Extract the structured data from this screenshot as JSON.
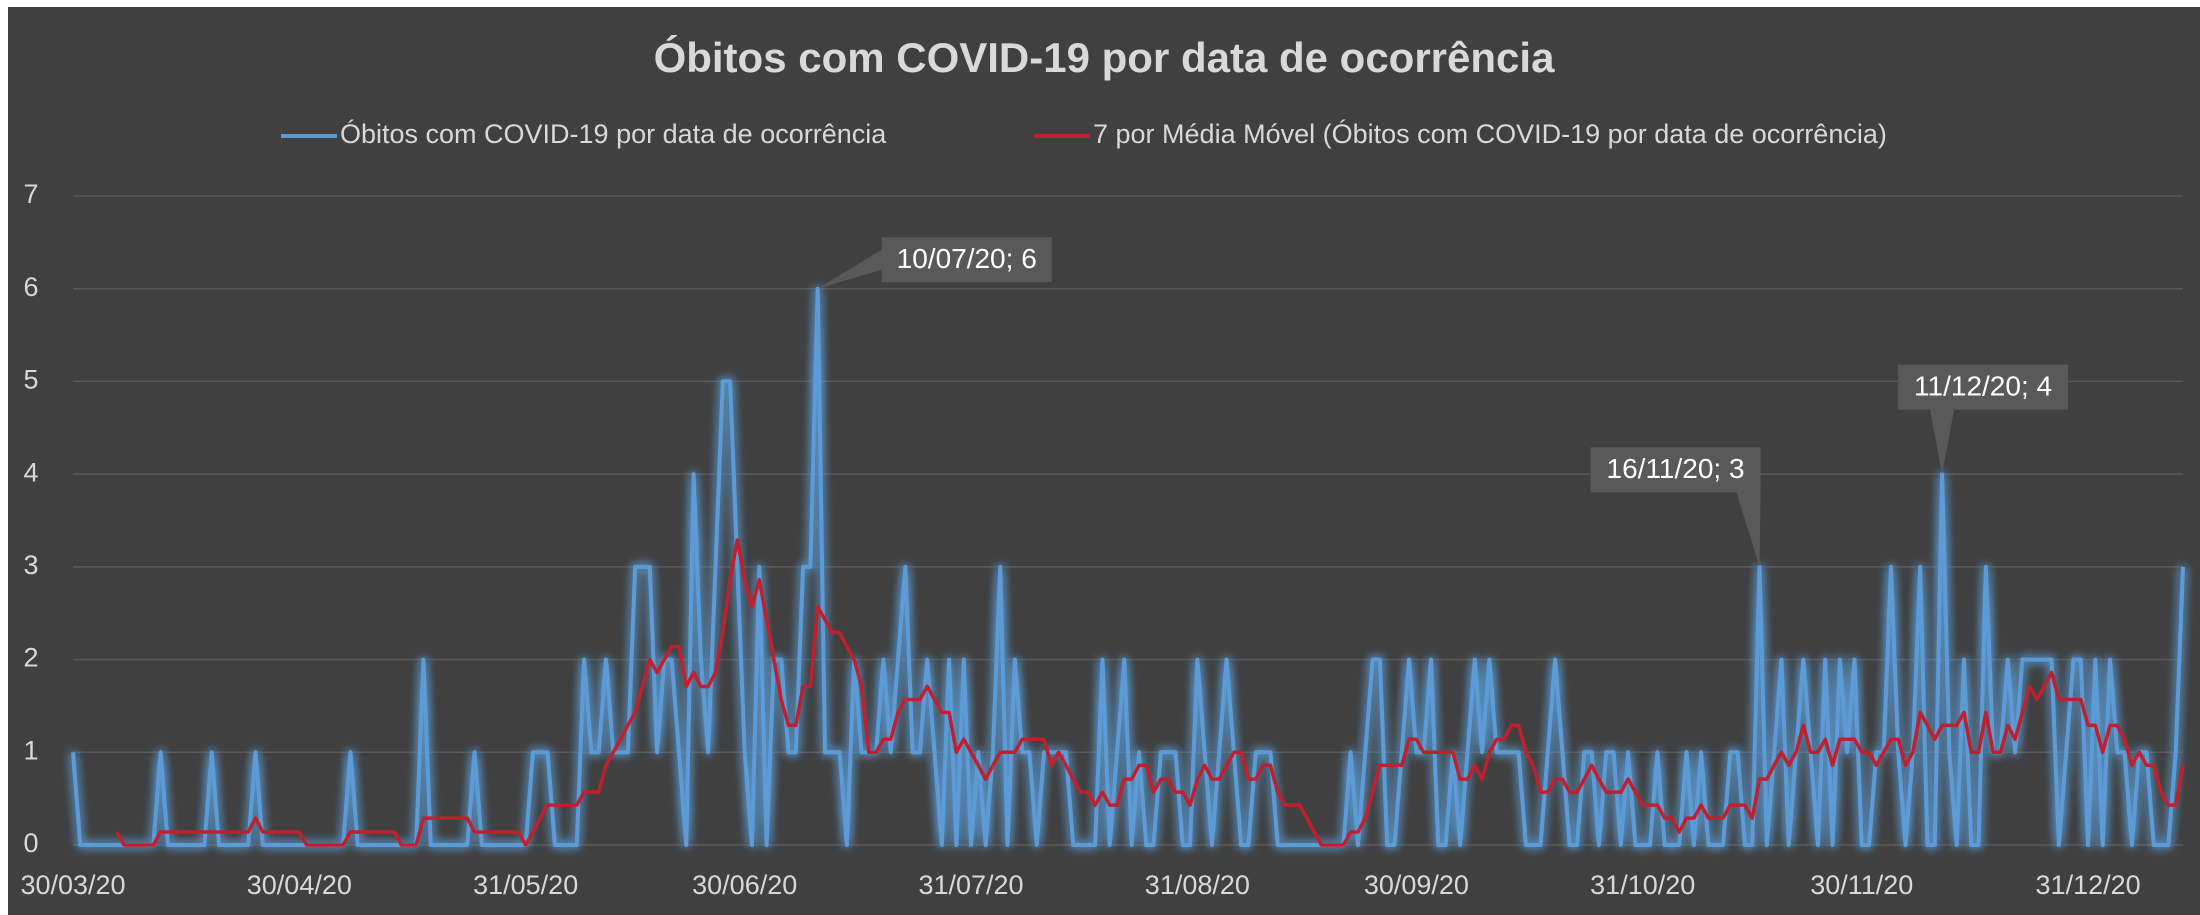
{
  "chart_data": {
    "type": "line",
    "title": "Óbitos com COVID-19 por data de ocorrência",
    "x": [
      "30/03/20",
      "31/03/20",
      "01/04/20",
      "02/04/20",
      "03/04/20",
      "04/04/20",
      "05/04/20",
      "06/04/20",
      "07/04/20",
      "08/04/20",
      "09/04/20",
      "10/04/20",
      "11/04/20",
      "12/04/20",
      "13/04/20",
      "14/04/20",
      "15/04/20",
      "16/04/20",
      "17/04/20",
      "18/04/20",
      "19/04/20",
      "20/04/20",
      "21/04/20",
      "22/04/20",
      "23/04/20",
      "24/04/20",
      "25/04/20",
      "26/04/20",
      "27/04/20",
      "28/04/20",
      "29/04/20",
      "30/04/20",
      "01/05/20",
      "02/05/20",
      "03/05/20",
      "04/05/20",
      "05/05/20",
      "06/05/20",
      "07/05/20",
      "08/05/20",
      "09/05/20",
      "10/05/20",
      "11/05/20",
      "12/05/20",
      "13/05/20",
      "14/05/20",
      "15/05/20",
      "16/05/20",
      "17/05/20",
      "18/05/20",
      "19/05/20",
      "20/05/20",
      "21/05/20",
      "22/05/20",
      "23/05/20",
      "24/05/20",
      "25/05/20",
      "26/05/20",
      "27/05/20",
      "28/05/20",
      "29/05/20",
      "30/05/20",
      "31/05/20",
      "01/06/20",
      "02/06/20",
      "03/06/20",
      "04/06/20",
      "05/06/20",
      "06/06/20",
      "07/06/20",
      "08/06/20",
      "09/06/20",
      "10/06/20",
      "11/06/20",
      "12/06/20",
      "13/06/20",
      "14/06/20",
      "15/06/20",
      "16/06/20",
      "17/06/20",
      "18/06/20",
      "19/06/20",
      "20/06/20",
      "21/06/20",
      "22/06/20",
      "23/06/20",
      "24/06/20",
      "25/06/20",
      "26/06/20",
      "27/06/20",
      "28/06/20",
      "29/06/20",
      "30/06/20",
      "01/07/20",
      "02/07/20",
      "03/07/20",
      "04/07/20",
      "05/07/20",
      "06/07/20",
      "07/07/20",
      "08/07/20",
      "09/07/20",
      "10/07/20",
      "11/07/20",
      "12/07/20",
      "13/07/20",
      "14/07/20",
      "15/07/20",
      "16/07/20",
      "17/07/20",
      "18/07/20",
      "19/07/20",
      "20/07/20",
      "21/07/20",
      "22/07/20",
      "23/07/20",
      "24/07/20",
      "25/07/20",
      "26/07/20",
      "27/07/20",
      "28/07/20",
      "29/07/20",
      "30/07/20",
      "31/07/20",
      "01/08/20",
      "02/08/20",
      "03/08/20",
      "04/08/20",
      "05/08/20",
      "06/08/20",
      "07/08/20",
      "08/08/20",
      "09/08/20",
      "10/08/20",
      "11/08/20",
      "12/08/20",
      "13/08/20",
      "14/08/20",
      "15/08/20",
      "16/08/20",
      "17/08/20",
      "18/08/20",
      "19/08/20",
      "20/08/20",
      "21/08/20",
      "22/08/20",
      "23/08/20",
      "24/08/20",
      "25/08/20",
      "26/08/20",
      "27/08/20",
      "28/08/20",
      "29/08/20",
      "30/08/20",
      "31/08/20",
      "01/09/20",
      "02/09/20",
      "03/09/20",
      "04/09/20",
      "05/09/20",
      "06/09/20",
      "07/09/20",
      "08/09/20",
      "09/09/20",
      "10/09/20",
      "11/09/20",
      "12/09/20",
      "13/09/20",
      "14/09/20",
      "15/09/20",
      "16/09/20",
      "17/09/20",
      "18/09/20",
      "19/09/20",
      "20/09/20",
      "21/09/20",
      "22/09/20",
      "23/09/20",
      "24/09/20",
      "25/09/20",
      "26/09/20",
      "27/09/20",
      "28/09/20",
      "29/09/20",
      "30/09/20",
      "01/10/20",
      "02/10/20",
      "03/10/20",
      "04/10/20",
      "05/10/20",
      "06/10/20",
      "07/10/20",
      "08/10/20",
      "09/10/20",
      "10/10/20",
      "11/10/20",
      "12/10/20",
      "13/10/20",
      "14/10/20",
      "15/10/20",
      "16/10/20",
      "17/10/20",
      "18/10/20",
      "19/10/20",
      "20/10/20",
      "21/10/20",
      "22/10/20",
      "23/10/20",
      "24/10/20",
      "25/10/20",
      "26/10/20",
      "27/10/20",
      "28/10/20",
      "29/10/20",
      "30/10/20",
      "31/10/20",
      "01/11/20",
      "02/11/20",
      "03/11/20",
      "04/11/20",
      "05/11/20",
      "06/11/20",
      "07/11/20",
      "08/11/20",
      "09/11/20",
      "10/11/20",
      "11/11/20",
      "12/11/20",
      "13/11/20",
      "14/11/20",
      "15/11/20",
      "16/11/20",
      "17/11/20",
      "18/11/20",
      "19/11/20",
      "20/11/20",
      "21/11/20",
      "22/11/20",
      "23/11/20",
      "24/11/20",
      "25/11/20",
      "26/11/20",
      "27/11/20",
      "28/11/20",
      "29/11/20",
      "30/11/20",
      "01/12/20",
      "02/12/20",
      "03/12/20",
      "04/12/20",
      "05/12/20",
      "06/12/20",
      "07/12/20",
      "08/12/20",
      "09/12/20",
      "10/12/20",
      "11/12/20",
      "12/12/20",
      "13/12/20",
      "14/12/20",
      "15/12/20",
      "16/12/20",
      "17/12/20",
      "18/12/20",
      "19/12/20",
      "20/12/20",
      "21/12/20",
      "22/12/20",
      "23/12/20",
      "24/12/20",
      "25/12/20",
      "26/12/20",
      "27/12/20",
      "28/12/20",
      "29/12/20",
      "30/12/20",
      "31/12/20",
      "01/01/21",
      "02/01/21",
      "03/01/21",
      "04/01/21",
      "05/01/21",
      "06/01/21",
      "07/01/21",
      "08/01/21",
      "09/01/21",
      "10/01/21",
      "11/01/21",
      "12/01/21",
      "13/01/21"
    ],
    "series": [
      {
        "name": "Óbitos com COVID-19 por data de ocorrência",
        "color": "#5b9bd5",
        "glow": true,
        "values": [
          1,
          0,
          0,
          0,
          0,
          0,
          0,
          0,
          0,
          0,
          0,
          0,
          1,
          0,
          0,
          0,
          0,
          0,
          0,
          1,
          0,
          0,
          0,
          0,
          0,
          1,
          0,
          0,
          0,
          0,
          0,
          0,
          0,
          0,
          0,
          0,
          0,
          0,
          1,
          0,
          0,
          0,
          0,
          0,
          0,
          0,
          0,
          0,
          2,
          0,
          0,
          0,
          0,
          0,
          0,
          1,
          0,
          0,
          0,
          0,
          0,
          0,
          0,
          1,
          1,
          1,
          0,
          0,
          0,
          0,
          2,
          1,
          1,
          2,
          1,
          1,
          1,
          3,
          3,
          3,
          1,
          2,
          2,
          1,
          0,
          4,
          2,
          1,
          3,
          5,
          5,
          3,
          1,
          0,
          3,
          0,
          2,
          2,
          1,
          1,
          3,
          3,
          6,
          1,
          1,
          1,
          0,
          2,
          1,
          1,
          1,
          2,
          1,
          2,
          3,
          1,
          1,
          2,
          1,
          0,
          2,
          0,
          2,
          0,
          1,
          0,
          1,
          3,
          0,
          2,
          1,
          1,
          0,
          1,
          1,
          1,
          1,
          0,
          0,
          0,
          0,
          2,
          0,
          1,
          2,
          0,
          1,
          0,
          0,
          1,
          1,
          1,
          0,
          0,
          2,
          1,
          0,
          1,
          2,
          1,
          0,
          0,
          1,
          1,
          1,
          0,
          0,
          0,
          0,
          0,
          0,
          0,
          0,
          0,
          0,
          1,
          0,
          1,
          2,
          2,
          0,
          0,
          1,
          2,
          1,
          1,
          2,
          0,
          0,
          1,
          0,
          1,
          2,
          1,
          2,
          1,
          1,
          1,
          1,
          0,
          0,
          0,
          1,
          2,
          1,
          0,
          0,
          1,
          1,
          0,
          1,
          1,
          0,
          1,
          0,
          0,
          0,
          1,
          0,
          0,
          0,
          1,
          0,
          1,
          0,
          0,
          0,
          1,
          1,
          0,
          0,
          3,
          0,
          1,
          2,
          0,
          1,
          2,
          1,
          0,
          2,
          0,
          2,
          1,
          2,
          0,
          0,
          1,
          1,
          3,
          1,
          0,
          1,
          3,
          0,
          0,
          4,
          1,
          0,
          2,
          0,
          0,
          3,
          1,
          1,
          2,
          1,
          2,
          2,
          2,
          2,
          2,
          0,
          1,
          2,
          2,
          0,
          2,
          0,
          2,
          1,
          1,
          0,
          1,
          1,
          0,
          0,
          0,
          1,
          3
        ]
      },
      {
        "name": "7 por Média Móvel (Óbitos com COVID-19 por data de ocorrência)",
        "color": "#c0202e",
        "glow": false,
        "values": [
          null,
          null,
          null,
          null,
          null,
          null,
          0.14,
          0,
          0,
          0,
          0,
          0,
          0.14,
          0.14,
          0.14,
          0.14,
          0.14,
          0.14,
          0.14,
          0.14,
          0.14,
          0.14,
          0.14,
          0.14,
          0.14,
          0.29,
          0.14,
          0.14,
          0.14,
          0.14,
          0.14,
          0.14,
          0,
          0,
          0,
          0,
          0,
          0,
          0.14,
          0.14,
          0.14,
          0.14,
          0.14,
          0.14,
          0.14,
          0,
          0,
          0,
          0.29,
          0.29,
          0.29,
          0.29,
          0.29,
          0.29,
          0.29,
          0.14,
          0.14,
          0.14,
          0.14,
          0.14,
          0.14,
          0.14,
          0,
          0.14,
          0.29,
          0.43,
          0.43,
          0.43,
          0.43,
          0.43,
          0.57,
          0.57,
          0.57,
          0.86,
          1,
          1.14,
          1.29,
          1.43,
          1.71,
          2,
          1.86,
          2,
          2.14,
          2.14,
          1.71,
          1.86,
          1.71,
          1.71,
          1.86,
          2.29,
          2.86,
          3.29,
          2.86,
          2.57,
          2.86,
          2.43,
          2,
          1.57,
          1.29,
          1.29,
          1.71,
          1.71,
          2.57,
          2.43,
          2.29,
          2.29,
          2.14,
          2,
          1.71,
          1,
          1,
          1.14,
          1.14,
          1.43,
          1.57,
          1.57,
          1.57,
          1.71,
          1.57,
          1.43,
          1.43,
          1,
          1.14,
          1,
          0.86,
          0.71,
          0.86,
          1,
          1,
          1,
          1.14,
          1.14,
          1.14,
          1.14,
          0.86,
          1,
          0.86,
          0.71,
          0.57,
          0.57,
          0.43,
          0.57,
          0.43,
          0.43,
          0.71,
          0.71,
          0.86,
          0.86,
          0.57,
          0.71,
          0.71,
          0.57,
          0.57,
          0.43,
          0.71,
          0.86,
          0.71,
          0.71,
          0.86,
          1,
          1,
          0.71,
          0.71,
          0.86,
          0.86,
          0.57,
          0.43,
          0.43,
          0.43,
          0.29,
          0.14,
          0,
          0,
          0,
          0,
          0.14,
          0.14,
          0.29,
          0.57,
          0.86,
          0.86,
          0.86,
          0.86,
          1.14,
          1.14,
          1,
          1,
          1,
          1,
          1,
          0.71,
          0.71,
          0.86,
          0.71,
          1,
          1.14,
          1.14,
          1.29,
          1.29,
          1,
          0.86,
          0.57,
          0.57,
          0.71,
          0.71,
          0.57,
          0.57,
          0.71,
          0.86,
          0.71,
          0.57,
          0.57,
          0.57,
          0.71,
          0.57,
          0.43,
          0.43,
          0.43,
          0.29,
          0.29,
          0.14,
          0.29,
          0.29,
          0.43,
          0.29,
          0.29,
          0.29,
          0.43,
          0.43,
          0.43,
          0.29,
          0.71,
          0.71,
          0.86,
          1,
          0.86,
          1,
          1.29,
          1,
          1,
          1.14,
          0.86,
          1.14,
          1.14,
          1.14,
          1,
          1,
          0.86,
          1,
          1.14,
          1.14,
          0.86,
          1,
          1.43,
          1.29,
          1.14,
          1.29,
          1.29,
          1.29,
          1.43,
          1,
          1,
          1.43,
          1,
          1,
          1.29,
          1.14,
          1.43,
          1.71,
          1.57,
          1.71,
          1.86,
          1.57,
          1.57,
          1.57,
          1.57,
          1.29,
          1.29,
          1,
          1.29,
          1.29,
          1.14,
          0.86,
          1,
          0.86,
          0.86,
          0.57,
          0.43,
          0.43,
          0.86
        ]
      }
    ],
    "xlim": [
      "30/03/20",
      "13/01/21"
    ],
    "xticks": [
      "30/03/20",
      "30/04/20",
      "31/05/20",
      "30/06/20",
      "31/07/20",
      "31/08/20",
      "30/09/20",
      "31/10/20",
      "30/11/20",
      "31/12/20"
    ],
    "ylim": [
      0,
      7
    ],
    "yticks": [
      0,
      1,
      2,
      3,
      4,
      5,
      6,
      7
    ],
    "grid": true,
    "legend": "top",
    "annotations": [
      {
        "text": "10/07/20; 6",
        "x": "10/07/20",
        "y": 6
      },
      {
        "text": "16/11/20; 3",
        "x": "16/11/20",
        "y": 3
      },
      {
        "text": "11/12/20; 4",
        "x": "11/12/20",
        "y": 4
      }
    ]
  }
}
